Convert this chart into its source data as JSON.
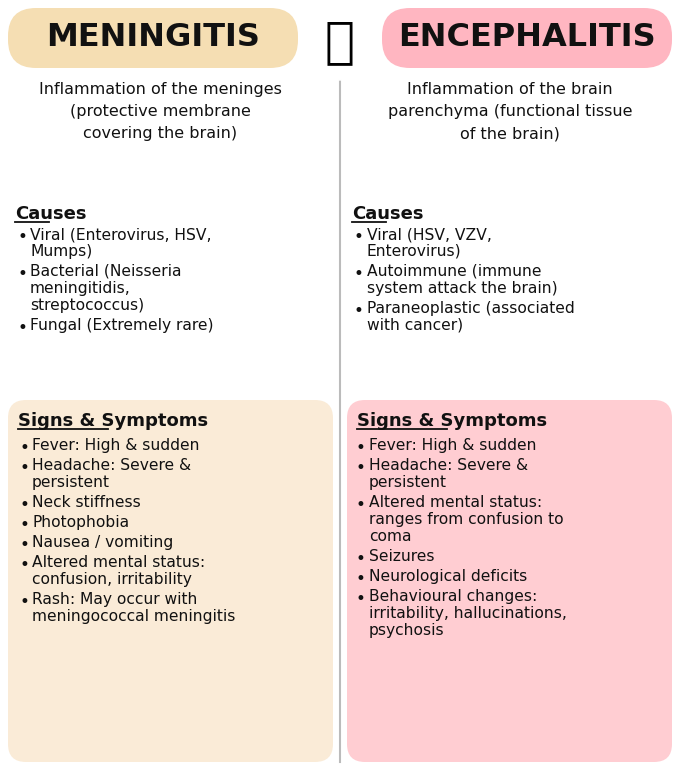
{
  "bg_color": "#ffffff",
  "left_title_bg": "#f5deb3",
  "right_title_bg": "#ffb6c1",
  "left_symptoms_bg": "#faebd7",
  "right_symptoms_bg": "#ffcdd2",
  "title_text_color": "#111111",
  "body_text_color": "#111111",
  "left_title": "MENINGITIS",
  "right_title": "ENCEPHALITIS",
  "left_definition": "Inflammation of the meninges\n(protective membrane\ncovering the brain)",
  "right_definition": "Inflammation of the brain\nparenchyma (functional tissue\nof the brain)",
  "causes_header": "Causes",
  "left_causes": [
    "Viral (Enterovirus, HSV,\nMumps)",
    "Bacterial (Neisseria\nmeningitidis,\nstreptococcus)",
    "Fungal (Extremely rare)"
  ],
  "right_causes": [
    "Viral (HSV, VZV,\nEnterovirus)",
    "Autoimmune (immune\nsystem attack the brain)",
    "Paraneoplastic (associated\nwith cancer)"
  ],
  "symptoms_header": "Signs & Symptoms",
  "left_symptoms": [
    "Fever: High & sudden",
    "Headache: Severe &\npersistent",
    "Neck stiffness",
    "Photophobia",
    "Nausea / vomiting",
    "Altered mental status:\nconfusion, irritability",
    "Rash: May occur with\nmeningococcal meningitis"
  ],
  "right_symptoms": [
    "Fever: High & sudden",
    "Headache: Severe &\npersistent",
    "Altered mental status:\nranges from confusion to\ncoma",
    "Seizures",
    "Neurological deficits",
    "Behavioural changes:\nirritability, hallucinations,\npsychosis"
  ],
  "fig_width": 6.8,
  "fig_height": 7.69,
  "dpi": 100
}
